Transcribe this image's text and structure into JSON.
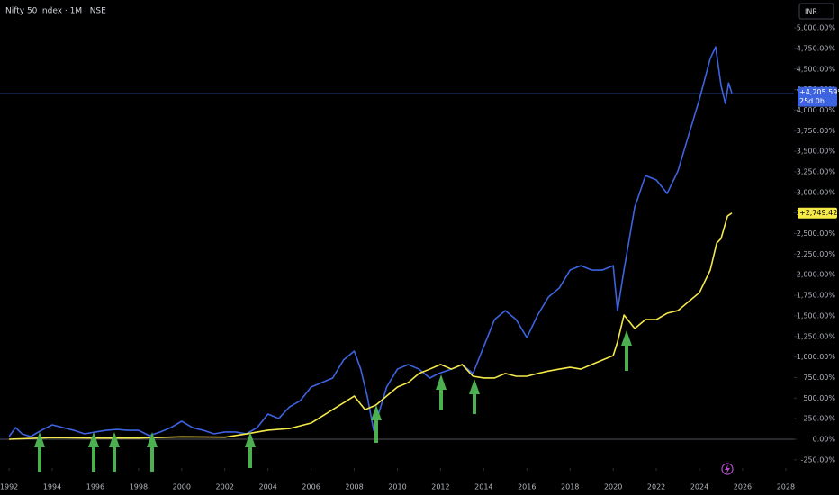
{
  "chart_data": {
    "type": "line",
    "title": "Nifty 50 Index · 1M · NSE",
    "currency_button": "INR",
    "xlim": [
      1991.58,
      2028.38
    ],
    "xticks": [
      1992,
      1994,
      1996,
      1998,
      2000,
      2002,
      2004,
      2006,
      2008,
      2010,
      2012,
      2014,
      2016,
      2018,
      2020,
      2022,
      2024,
      2026,
      2028
    ],
    "ylim": [
      -350,
      5340
    ],
    "yticks": [
      {
        "value": -250,
        "label": "-250.00%"
      },
      {
        "value": 0,
        "label": "0.00%"
      },
      {
        "value": 250,
        "label": "250.00%"
      },
      {
        "value": 500,
        "label": "500.00%"
      },
      {
        "value": 750,
        "label": "750.00%"
      },
      {
        "value": 1000,
        "label": "1,000.00%"
      },
      {
        "value": 1250,
        "label": "1,250.00%"
      },
      {
        "value": 1500,
        "label": "1,500.00%"
      },
      {
        "value": 1750,
        "label": "1,750.00%"
      },
      {
        "value": 2000,
        "label": "2,000.00%"
      },
      {
        "value": 2250,
        "label": "2,250.00%"
      },
      {
        "value": 2500,
        "label": "2,500.00%"
      },
      {
        "value": 2750,
        "label": "2,750.00%"
      },
      {
        "value": 3000,
        "label": "3,000.00%"
      },
      {
        "value": 3250,
        "label": "3,250.00%"
      },
      {
        "value": 3500,
        "label": "3,500.00%"
      },
      {
        "value": 3750,
        "label": "3,750.00%"
      },
      {
        "value": 4000,
        "label": "4,000.00%"
      },
      {
        "value": 4250,
        "label": "4,250.00%"
      },
      {
        "value": 4500,
        "label": "4,500.00%"
      },
      {
        "value": 4750,
        "label": "4,750.00%"
      },
      {
        "value": 5000,
        "label": "5,000.00%"
      }
    ],
    "series": [
      {
        "color": "#3d63e0",
        "last_label": "+4,205.59%",
        "countdown": "25d 0h",
        "x": [
          1992,
          1992.3,
          1992.6,
          1993,
          1993.5,
          1994,
          1994.5,
          1995,
          1995.5,
          1996,
          1996.5,
          1997,
          1997.5,
          1998,
          1998.5,
          1999,
          1999.5,
          2000,
          2000.5,
          2001,
          2001.5,
          2002,
          2002.5,
          2003,
          2003.5,
          2004,
          2004.5,
          2005,
          2005.5,
          2006,
          2006.5,
          2007,
          2007.5,
          2008,
          2008.3,
          2008.6,
          2008.9,
          2009.5,
          2010,
          2010.5,
          2011,
          2011.5,
          2011.9,
          2012.5,
          2013,
          2013.5,
          2014,
          2014.5,
          2015,
          2015.5,
          2016,
          2016.5,
          2017,
          2017.5,
          2018,
          2018.5,
          2019,
          2019.5,
          2020,
          2020.2,
          2020.5,
          2021,
          2021.5,
          2022,
          2022.5,
          2023,
          2023.5,
          2024,
          2024.5,
          2024.75,
          2025,
          2025.2,
          2025.35,
          2025.5
        ],
        "values": [
          33,
          142,
          66,
          33,
          109,
          175,
          142,
          109,
          66,
          88,
          109,
          120,
          109,
          109,
          44,
          88,
          142,
          219,
          142,
          109,
          66,
          88,
          88,
          66,
          142,
          306,
          252,
          394,
          470,
          635,
          689,
          744,
          963,
          1072,
          853,
          525,
          109,
          635,
          853,
          908,
          853,
          744,
          799,
          853,
          908,
          799,
          1127,
          1455,
          1564,
          1455,
          1236,
          1510,
          1729,
          1838,
          2057,
          2111,
          2057,
          2057,
          2111,
          1564,
          2057,
          2822,
          3205,
          3151,
          2987,
          3260,
          3698,
          4135,
          4628,
          4770,
          4299,
          4081,
          4332,
          4205.59
        ]
      },
      {
        "color": "#f5e94a",
        "last_label": "+2,749.42%",
        "x": [
          1992,
          1994,
          1996,
          1998,
          2000,
          2002,
          2003,
          2004,
          2005,
          2006,
          2007,
          2008,
          2008.5,
          2009,
          2009.5,
          2010,
          2010.5,
          2011,
          2011.5,
          2012,
          2012.5,
          2013,
          2013.5,
          2014,
          2014.5,
          2015,
          2015.5,
          2016,
          2016.5,
          2017,
          2017.5,
          2018,
          2018.5,
          2019,
          2019.5,
          2020,
          2020.2,
          2020.5,
          2021,
          2021.5,
          2022,
          2022.5,
          2023,
          2023.5,
          2024,
          2024.5,
          2024.8,
          2025,
          2025.3,
          2025.5
        ],
        "values": [
          0,
          20,
          15,
          15,
          30,
          25,
          65,
          110,
          130,
          197,
          360,
          525,
          360,
          415,
          525,
          635,
          689,
          800,
          853,
          910,
          853,
          908,
          766,
          745,
          745,
          800,
          766,
          766,
          800,
          830,
          853,
          875,
          853,
          908,
          963,
          1017,
          1182,
          1510,
          1346,
          1455,
          1455,
          1532,
          1564,
          1674,
          1783,
          2057,
          2385,
          2440,
          2713,
          2749.42
        ]
      }
    ]
  }
}
